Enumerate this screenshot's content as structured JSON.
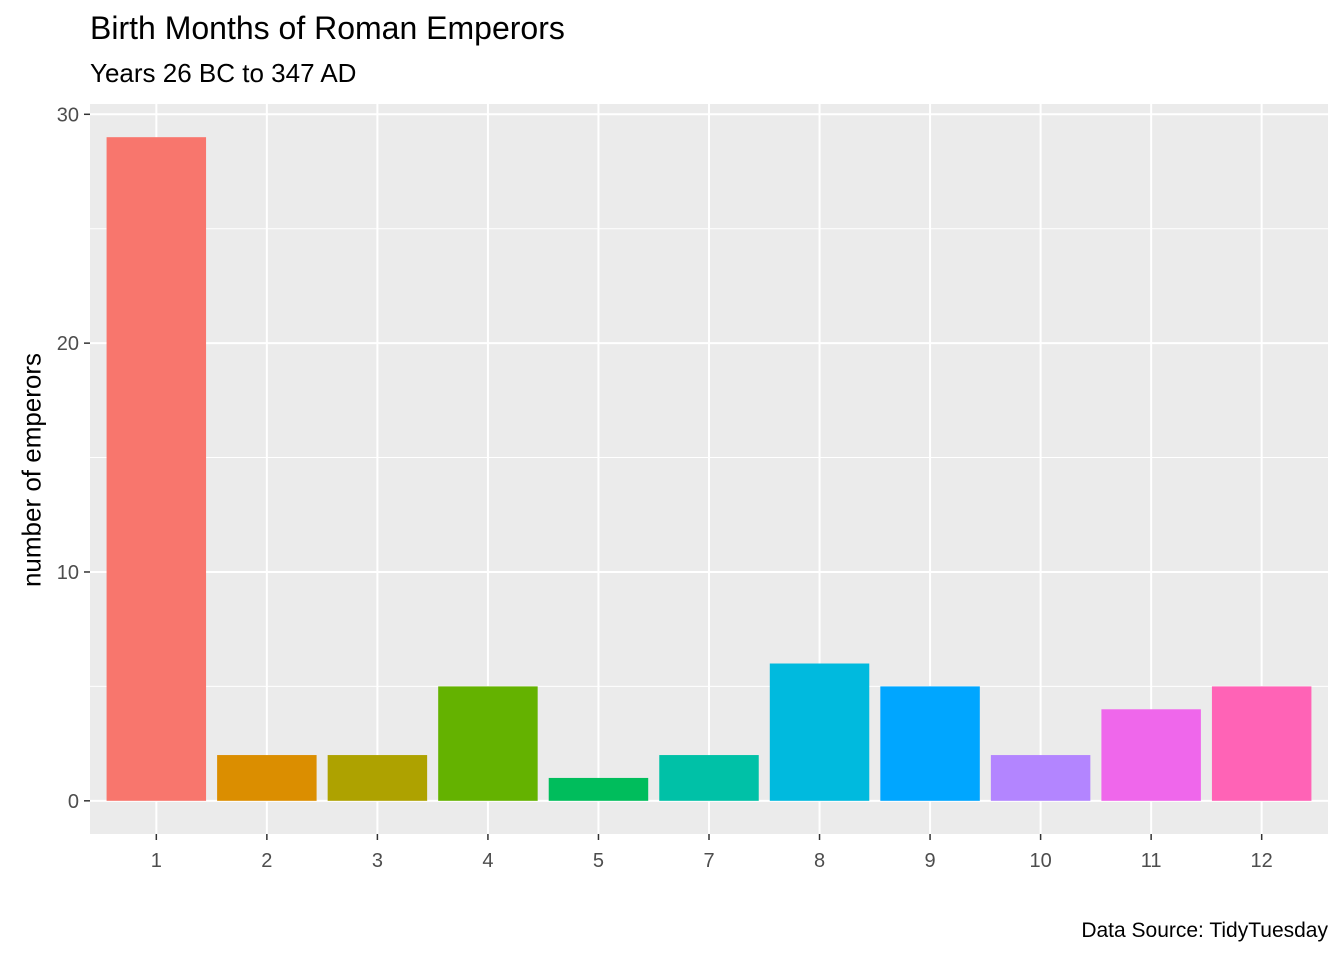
{
  "chart_data": {
    "type": "bar",
    "title": "Birth Months of Roman Emperors",
    "subtitle": "Years 26 BC to 347 AD",
    "xlabel": "",
    "ylabel": "number of emperors",
    "caption": "Data Source: TidyTuesday",
    "categories": [
      "1",
      "2",
      "3",
      "4",
      "5",
      "7",
      "8",
      "9",
      "10",
      "11",
      "12"
    ],
    "values": [
      29,
      2,
      2,
      5,
      1,
      2,
      6,
      5,
      2,
      4,
      5
    ],
    "colors": [
      "#F8766D",
      "#DB8E00",
      "#AEA200",
      "#64B200",
      "#00BD5C",
      "#00C1A7",
      "#00BADE",
      "#00A6FF",
      "#B385FF",
      "#EF67EB",
      "#FF63B6"
    ],
    "ylim": [
      -1.45,
      30.45
    ],
    "yticks": [
      0,
      10,
      20,
      30
    ],
    "grid": true,
    "panel_background": "#EBEBEB",
    "gridline_color": "#FFFFFF",
    "legend": "none"
  }
}
